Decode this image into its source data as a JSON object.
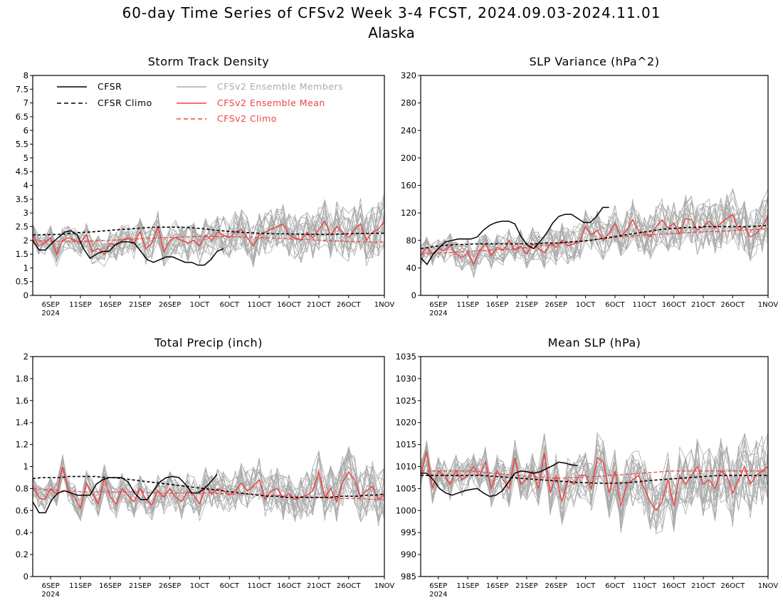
{
  "title": "60-day Time Series of CFSv2 Week 3-4 FCST, 2024.09.03-2024.11.01",
  "subtitle": "Alaska",
  "colors": {
    "cfsr": "#000000",
    "members": "#aaaaaa",
    "ens_mean": "#ee4444",
    "climo_red": "#ee4444"
  },
  "legend": {
    "cfsr": "CFSR",
    "cfsr_climo": "CFSR Climo",
    "members": "CFSv2 Ensemble Members",
    "ens_mean": "CFSv2 Ensemble Mean",
    "cfsv2_climo": "CFSv2 Climo"
  },
  "chart_data": [
    {
      "type": "line",
      "title": "Storm Track Density",
      "ylim": [
        0,
        8
      ],
      "yticks": [
        "0",
        "0.5",
        "1",
        "1.5",
        "2",
        "2.5",
        "3",
        "3.5",
        "4",
        "4.5",
        "5",
        "5.5",
        "6",
        "6.5",
        "7",
        "7.5",
        "8"
      ],
      "x_start": "2024-09-03",
      "x_end": "2024-11-01",
      "xticks": [
        "6SEP",
        "11SEP",
        "16SEP",
        "21SEP",
        "26SEP",
        "1OCT",
        "6OCT",
        "11OCT",
        "16OCT",
        "21OCT",
        "26OCT",
        "1NOV"
      ],
      "xticks_year": "2024",
      "series": [
        {
          "name": "CFSR",
          "values": [
            2.0,
            1.65,
            1.65,
            1.9,
            2.1,
            2.3,
            2.35,
            2.2,
            1.7,
            1.35,
            1.5,
            1.6,
            1.6,
            1.85,
            1.95,
            1.95,
            1.9,
            1.6,
            1.3,
            1.2,
            1.3,
            1.4,
            1.4,
            1.3,
            1.2,
            1.2,
            1.1,
            1.1,
            1.3,
            1.6,
            1.7
          ]
        },
        {
          "name": "CFSR Climo",
          "values": [
            2.2,
            2.2,
            2.21,
            2.22,
            2.25,
            2.28,
            2.3,
            2.32,
            2.35,
            2.38,
            2.4,
            2.42,
            2.45,
            2.47,
            2.48,
            2.48,
            2.48,
            2.47,
            2.45,
            2.42,
            2.38,
            2.35,
            2.32,
            2.3,
            2.28,
            2.26,
            2.25,
            2.24,
            2.24,
            2.23,
            2.22,
            2.22,
            2.22,
            2.22,
            2.23,
            2.24,
            2.25,
            2.25,
            2.26,
            2.26
          ]
        },
        {
          "name": "CFSv2 Ensemble Mean",
          "values": [
            2.2,
            1.8,
            1.9,
            2.1,
            1.5,
            2.0,
            2.1,
            2.0,
            1.9,
            2.2,
            1.6,
            1.7,
            1.5,
            1.9,
            1.8,
            2.0,
            2.1,
            1.9,
            2.3,
            1.7,
            1.9,
            2.5,
            1.6,
            2.0,
            2.1,
            2.0,
            1.9,
            2.0,
            1.8,
            2.2,
            2.0,
            2.3,
            2.2,
            2.1,
            2.3,
            2.4,
            2.1,
            1.8,
            2.2,
            2.3,
            2.4,
            2.5,
            2.6,
            2.2,
            2.1,
            2.0,
            2.3,
            2.1,
            2.4,
            2.7,
            2.2,
            2.5,
            2.3,
            2.1,
            2.4,
            2.6,
            2.0,
            2.3,
            2.4,
            2.7
          ]
        },
        {
          "name": "CFSv2 Climo",
          "values": [
            2.0,
            1.98,
            1.97,
            1.97,
            1.97,
            1.98,
            2.0,
            2.02,
            2.04,
            2.06,
            2.08,
            2.1,
            2.12,
            2.13,
            2.14,
            2.14,
            2.14,
            2.13,
            2.12,
            2.1,
            2.08,
            2.06,
            2.04,
            2.02,
            2.0,
            1.98,
            1.96,
            1.95,
            1.94,
            1.94
          ]
        }
      ]
    },
    {
      "type": "line",
      "title": "SLP Variance (hPa^2)",
      "ylim": [
        0,
        320
      ],
      "yticks": [
        "0",
        "40",
        "80",
        "120",
        "160",
        "200",
        "240",
        "280",
        "320"
      ],
      "x_start": "2024-09-03",
      "x_end": "2024-11-01",
      "xticks": [
        "6SEP",
        "11SEP",
        "16SEP",
        "21SEP",
        "26SEP",
        "1OCT",
        "6OCT",
        "11OCT",
        "16OCT",
        "21OCT",
        "26OCT",
        "1NOV"
      ],
      "xticks_year": "2024",
      "series": [
        {
          "name": "CFSR",
          "values": [
            55,
            45,
            60,
            70,
            78,
            80,
            82,
            82,
            82,
            85,
            95,
            102,
            106,
            108,
            108,
            104,
            85,
            73,
            68,
            78,
            90,
            105,
            115,
            118,
            118,
            112,
            106,
            106,
            115,
            128,
            128
          ]
        },
        {
          "name": "CFSR Climo",
          "values": [
            68,
            70,
            72,
            73,
            74,
            74,
            75,
            75,
            75,
            75,
            75,
            75,
            75,
            75,
            76,
            76,
            77,
            78,
            79,
            80,
            82,
            84,
            86,
            88,
            90,
            92,
            94,
            96,
            97,
            98,
            99,
            99,
            100,
            100,
            100,
            100,
            100,
            100,
            101,
            102
          ]
        },
        {
          "name": "CFSv2 Ensemble Mean",
          "values": [
            58,
            70,
            60,
            68,
            65,
            72,
            60,
            55,
            62,
            45,
            65,
            75,
            58,
            70,
            65,
            80,
            66,
            72,
            60,
            75,
            68,
            62,
            75,
            70,
            80,
            72,
            75,
            78,
            100,
            88,
            95,
            80,
            90,
            105,
            85,
            95,
            110,
            95,
            90,
            85,
            100,
            110,
            98,
            105,
            90,
            112,
            110,
            95,
            100,
            108,
            98,
            105,
            112,
            118,
            95,
            100,
            85,
            90,
            100,
            115
          ]
        },
        {
          "name": "CFSv2 Climo",
          "values": [
            60,
            61,
            62,
            63,
            64,
            65,
            66,
            67,
            68,
            70,
            72,
            74,
            76,
            78,
            80,
            82,
            84,
            86,
            87,
            88,
            89,
            90,
            91,
            92,
            93,
            93,
            94,
            95,
            96,
            97
          ]
        }
      ]
    },
    {
      "type": "line",
      "title": "Total Precip (inch)",
      "ylim": [
        0,
        2
      ],
      "yticks": [
        "0",
        "0.2",
        "0.4",
        "0.6",
        "0.8",
        "1",
        "1.2",
        "1.4",
        "1.6",
        "1.8",
        "2"
      ],
      "x_start": "2024-09-03",
      "x_end": "2024-11-01",
      "xticks": [
        "6SEP",
        "11SEP",
        "16SEP",
        "21SEP",
        "26SEP",
        "1OCT",
        "6OCT",
        "11OCT",
        "16OCT",
        "21OCT",
        "26OCT",
        "1NOV"
      ],
      "xticks_year": "2024",
      "series": [
        {
          "name": "CFSR",
          "values": [
            0.68,
            0.58,
            0.58,
            0.7,
            0.76,
            0.78,
            0.76,
            0.74,
            0.74,
            0.74,
            0.84,
            0.88,
            0.9,
            0.9,
            0.9,
            0.86,
            0.76,
            0.7,
            0.7,
            0.78,
            0.86,
            0.9,
            0.91,
            0.9,
            0.84,
            0.76,
            0.76,
            0.8,
            0.86,
            0.93
          ]
        },
        {
          "name": "CFSR Climo",
          "values": [
            0.89,
            0.9,
            0.9,
            0.9,
            0.91,
            0.91,
            0.91,
            0.91,
            0.9,
            0.9,
            0.89,
            0.88,
            0.87,
            0.86,
            0.85,
            0.84,
            0.83,
            0.82,
            0.81,
            0.8,
            0.79,
            0.78,
            0.77,
            0.76,
            0.75,
            0.74,
            0.73,
            0.73,
            0.72,
            0.72,
            0.72,
            0.72,
            0.72,
            0.72,
            0.73,
            0.73,
            0.73,
            0.74,
            0.74,
            0.75
          ]
        },
        {
          "name": "CFSv2 Ensemble Mean",
          "values": [
            0.82,
            0.72,
            0.7,
            0.8,
            0.75,
            1.0,
            0.78,
            0.72,
            0.62,
            0.85,
            0.75,
            0.66,
            0.9,
            0.72,
            0.66,
            0.8,
            0.74,
            0.68,
            0.8,
            0.7,
            0.65,
            0.78,
            0.72,
            0.8,
            0.72,
            0.68,
            0.78,
            0.74,
            0.66,
            0.82,
            0.75,
            0.8,
            0.78,
            0.74,
            0.78,
            0.85,
            0.78,
            0.82,
            0.88,
            0.7,
            0.78,
            0.8,
            0.72,
            0.75,
            0.7,
            0.72,
            0.74,
            0.78,
            0.95,
            0.72,
            0.8,
            0.68,
            0.86,
            0.95,
            0.88,
            0.72,
            0.78,
            0.82,
            0.7,
            0.75
          ]
        },
        {
          "name": "CFSv2 Climo",
          "values": [
            0.8,
            0.79,
            0.78,
            0.78,
            0.77,
            0.77,
            0.77,
            0.77,
            0.77,
            0.77,
            0.76,
            0.76,
            0.76,
            0.76,
            0.76,
            0.76,
            0.75,
            0.75,
            0.75,
            0.74,
            0.74,
            0.73,
            0.73,
            0.72,
            0.72,
            0.71,
            0.71,
            0.71,
            0.7,
            0.7
          ]
        }
      ]
    },
    {
      "type": "line",
      "title": "Mean SLP (hPa)",
      "ylim": [
        985,
        1035
      ],
      "yticks": [
        "985",
        "990",
        "995",
        "1000",
        "1005",
        "1010",
        "1015",
        "1020",
        "1025",
        "1030",
        "1035"
      ],
      "x_start": "2024-09-03",
      "x_end": "2024-11-01",
      "xticks": [
        "6SEP",
        "11SEP",
        "16SEP",
        "21SEP",
        "26SEP",
        "1OCT",
        "6OCT",
        "11OCT",
        "16OCT",
        "21OCT",
        "26OCT",
        "1NOV"
      ],
      "xticks_year": "2024",
      "series": [
        {
          "name": "CFSR",
          "values": [
            1008.5,
            1008.5,
            1007,
            1005,
            1004,
            1003.5,
            1004,
            1004.5,
            1004.8,
            1005,
            1004,
            1003.2,
            1003.5,
            1004.5,
            1006.5,
            1008.5,
            1009,
            1008.8,
            1008.5,
            1008.8,
            1009.5,
            1010.2,
            1011,
            1010.8,
            1010.4,
            1010.2
          ]
        },
        {
          "name": "CFSR Climo",
          "values": [
            1008,
            1008,
            1008,
            1008,
            1008,
            1008,
            1007.8,
            1007.6,
            1007.4,
            1007.2,
            1007,
            1006.8,
            1006.6,
            1006.4,
            1006.3,
            1006.2,
            1006.2,
            1006.3,
            1006.5,
            1006.8,
            1007,
            1007.2,
            1007.4,
            1007.6,
            1007.8,
            1008,
            1008,
            1008,
            1008,
            1008
          ]
        },
        {
          "name": "CFSv2 Ensemble Mean",
          "values": [
            1008,
            1013.5,
            1005,
            1009,
            1008,
            1006,
            1009,
            1007,
            1008,
            1010,
            1008,
            1011,
            1005,
            1009,
            1007,
            1005,
            1012,
            1006,
            1007,
            1009,
            1005,
            1013,
            1004,
            1008,
            1002,
            1007,
            1006,
            1008,
            1008,
            1005,
            1012,
            1011,
            1004,
            1009,
            1001,
            1006,
            1007,
            1008,
            1005,
            1002,
            1000,
            1002,
            1007,
            1001,
            1008,
            1006,
            1008,
            1010,
            1006,
            1007,
            1005,
            1009,
            1008,
            1004,
            1007,
            1010,
            1006,
            1008,
            1009,
            1010
          ]
        },
        {
          "name": "CFSv2 Climo",
          "values": [
            1009,
            1009,
            1009,
            1009,
            1009,
            1008.8,
            1008.5,
            1008.2,
            1008,
            1007.8,
            1007.6,
            1007.4,
            1007.4,
            1007.5,
            1007.6,
            1007.8,
            1008,
            1008.2,
            1008.4,
            1008.6,
            1008.8,
            1009,
            1009,
            1009,
            1009,
            1009,
            1009,
            1009,
            1009,
            1009
          ]
        }
      ],
      "members_spread": 5.5
    }
  ]
}
